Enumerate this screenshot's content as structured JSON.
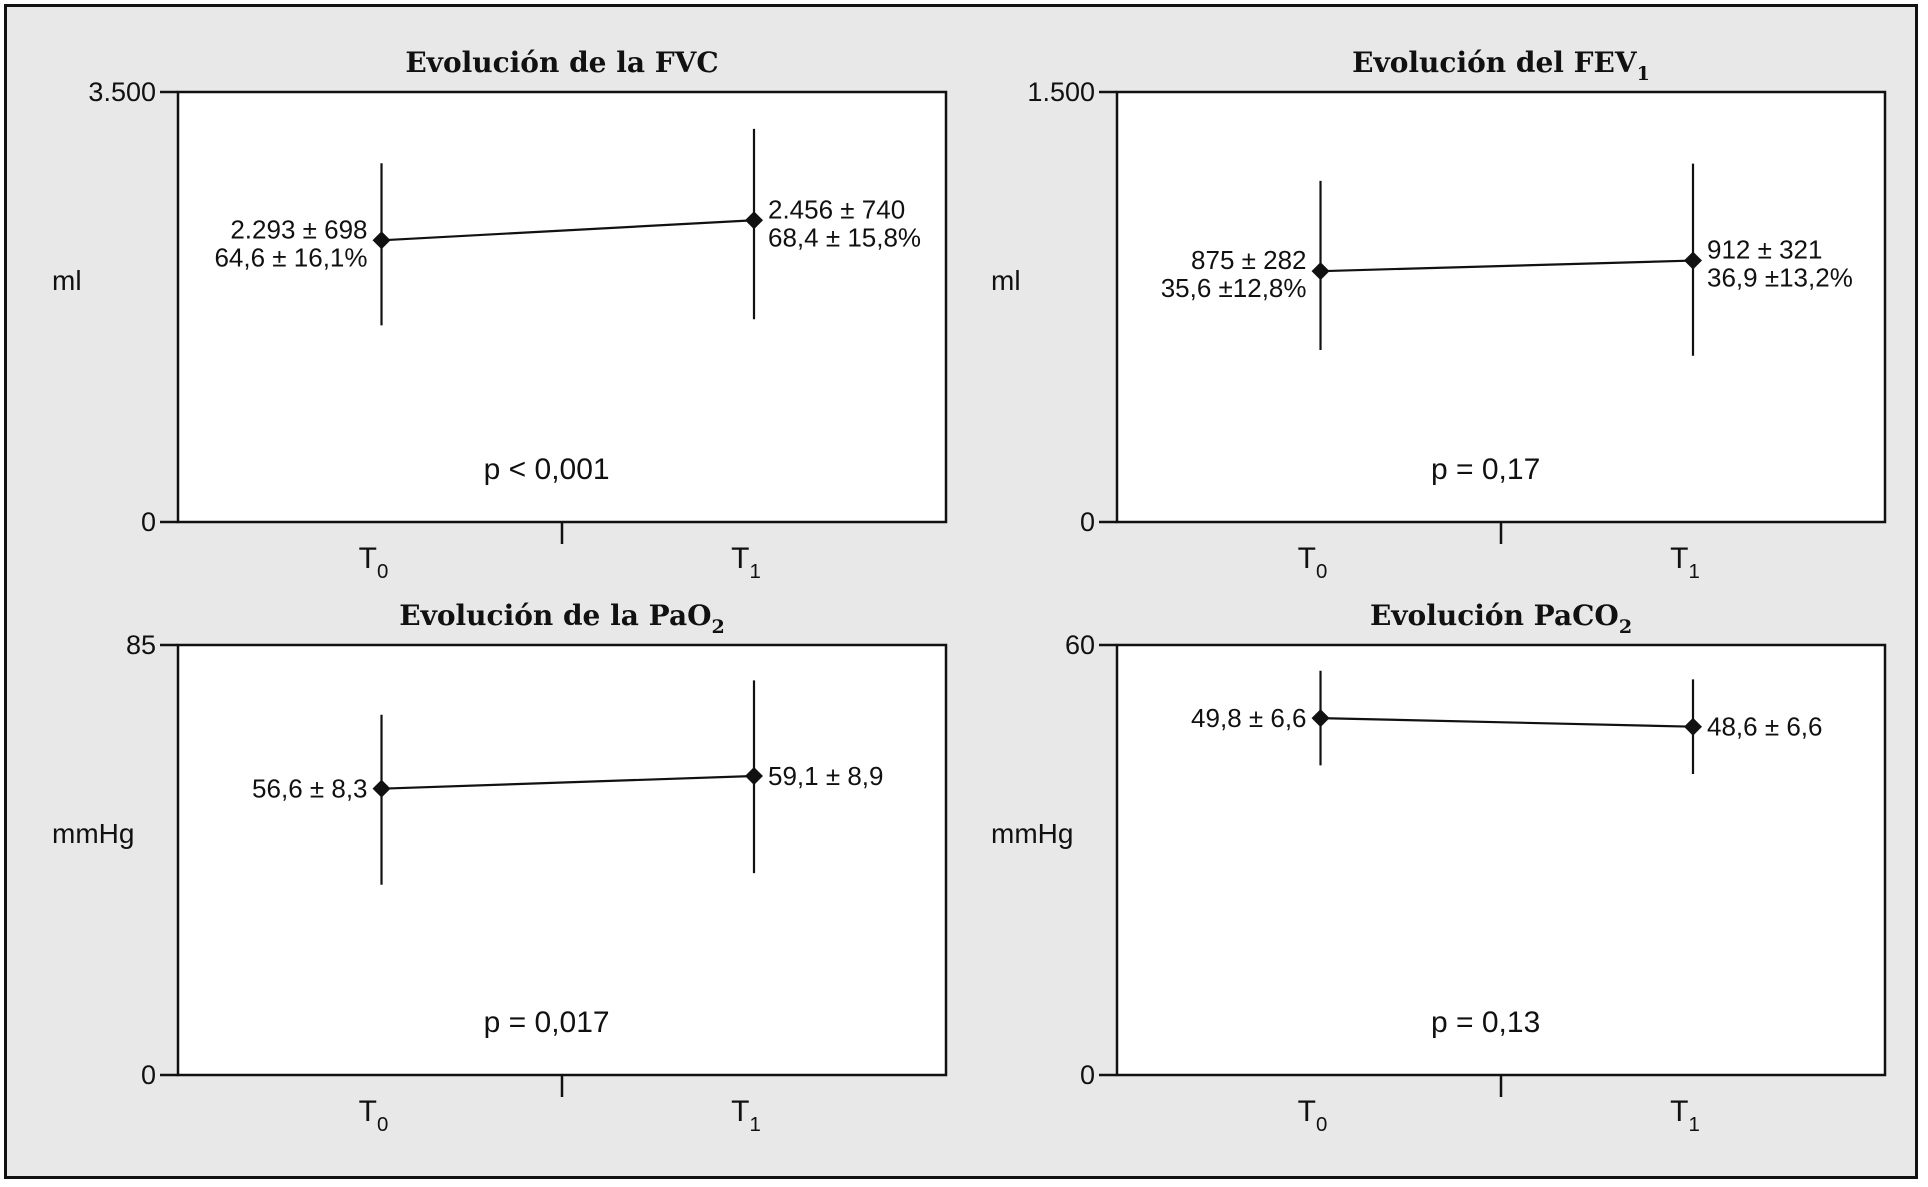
{
  "colors": {
    "panel_background": "#e8e8e8",
    "plot_background": "#ffffff",
    "ink": "#111111"
  },
  "chart_data": [
    {
      "type": "line",
      "title": "Evolución de la FVC",
      "ylabel": "ml",
      "ylim": [
        0,
        3500
      ],
      "yticks": [
        "3.500",
        "0"
      ],
      "categories": [
        {
          "base": "T",
          "sub": "0"
        },
        {
          "base": "T",
          "sub": "1"
        }
      ],
      "series": [
        {
          "values": [
            2293,
            2456
          ],
          "error_bars": [
            [
              1600,
              2920
            ],
            [
              1650,
              3200
            ]
          ],
          "labels": [
            [
              "2.293 ± 698",
              "64,6 ± 16,1%"
            ],
            [
              "2.456 ± 740",
              "68,4 ± 15,8%"
            ]
          ]
        }
      ],
      "annotation": "p < 0,001"
    },
    {
      "type": "line",
      "title": "Evolución del FEV",
      "title_sub": "1",
      "ylabel": "ml",
      "ylim": [
        0,
        1500
      ],
      "yticks": [
        "1.500",
        "0"
      ],
      "categories": [
        {
          "base": "T",
          "sub": "0"
        },
        {
          "base": "T",
          "sub": "1"
        }
      ],
      "series": [
        {
          "values": [
            875,
            912
          ],
          "error_bars": [
            [
              600,
              1190
            ],
            [
              580,
              1250
            ]
          ],
          "labels": [
            [
              "875 ± 282",
              "35,6 ±12,8%"
            ],
            [
              "912 ± 321",
              "36,9 ±13,2%"
            ]
          ]
        }
      ],
      "annotation": "p = 0,17"
    },
    {
      "type": "line",
      "title": "Evolución de la PaO",
      "title_sub": "2",
      "ylabel": "mmHg",
      "ylim": [
        0,
        85
      ],
      "yticks": [
        "85",
        "0"
      ],
      "categories": [
        {
          "base": "T",
          "sub": "0"
        },
        {
          "base": "T",
          "sub": "1"
        }
      ],
      "series": [
        {
          "values": [
            56.6,
            59.1
          ],
          "error_bars": [
            [
              37.6,
              71.2
            ],
            [
              39.9,
              78.0
            ]
          ],
          "labels": [
            [
              "56,6 ± 8,3"
            ],
            [
              "59,1 ± 8,9"
            ]
          ]
        }
      ],
      "annotation": "p = 0,017"
    },
    {
      "type": "line",
      "title": "Evolución PaCO",
      "title_sub": "2",
      "ylabel": "mmHg",
      "ylim": [
        0,
        60
      ],
      "yticks": [
        "60",
        "0"
      ],
      "categories": [
        {
          "base": "T",
          "sub": "0"
        },
        {
          "base": "T",
          "sub": "1"
        }
      ],
      "series": [
        {
          "values": [
            49.8,
            48.6
          ],
          "error_bars": [
            [
              43.2,
              56.4
            ],
            [
              42.0,
              55.2
            ]
          ],
          "labels": [
            [
              "49,8 ± 6,6"
            ],
            [
              "48,6 ± 6,6"
            ]
          ]
        }
      ],
      "annotation": "p = 0,13"
    }
  ]
}
